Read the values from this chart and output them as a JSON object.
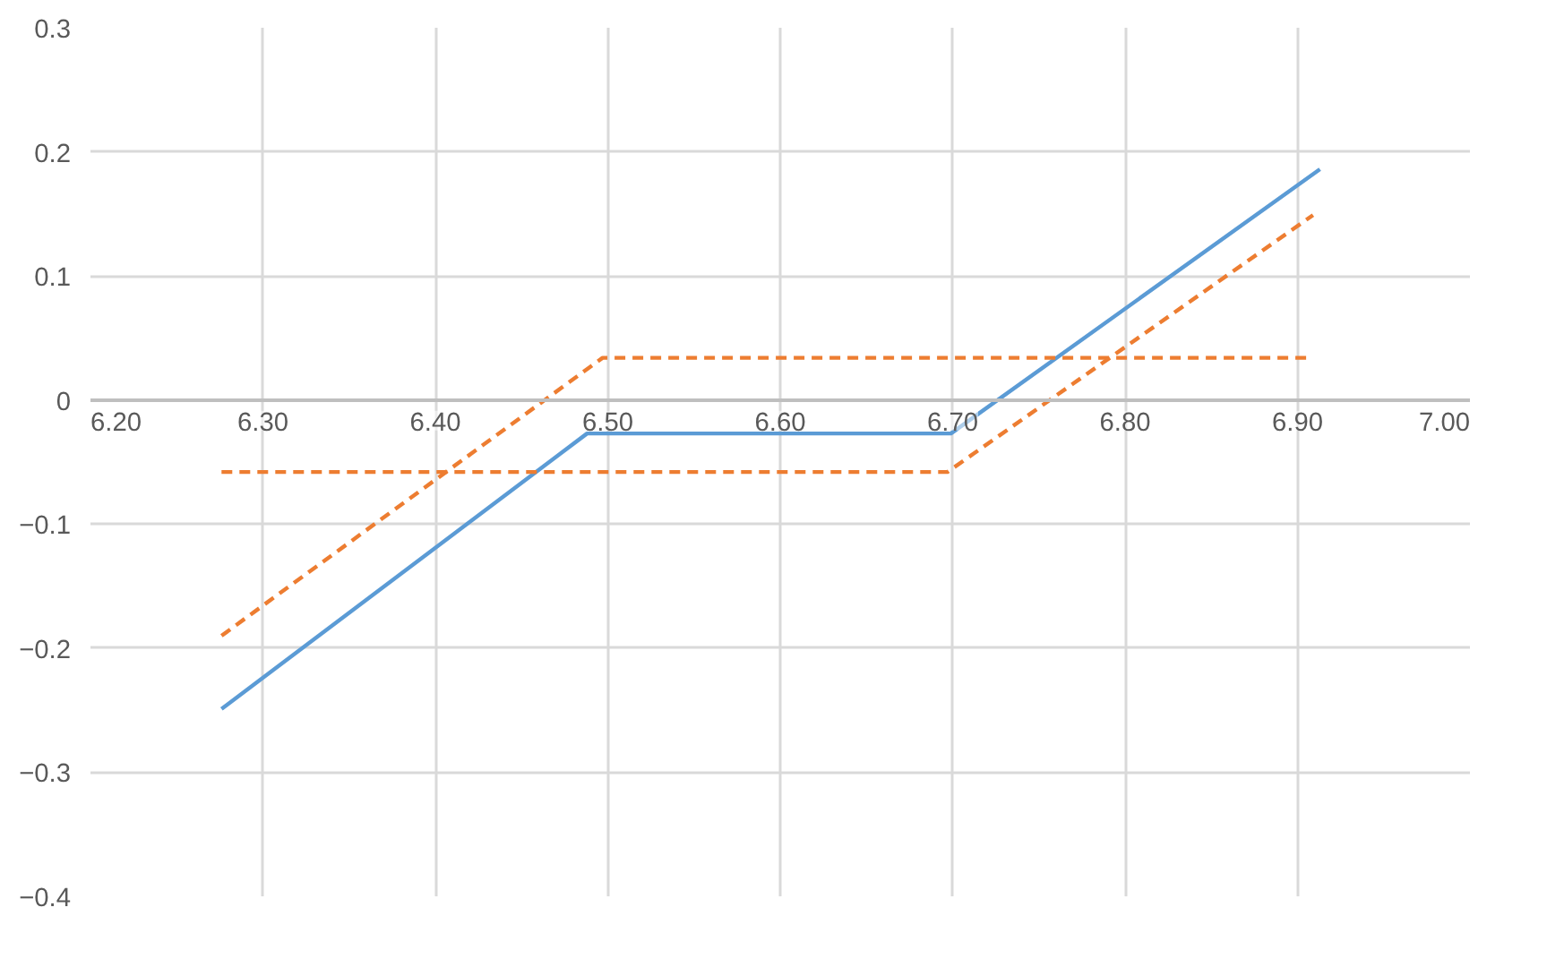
{
  "chart_data": {
    "type": "line",
    "xlim": [
      6.2,
      7.0
    ],
    "xticks": [
      {
        "value": 6.2,
        "label": "6.20"
      },
      {
        "value": 6.3,
        "label": "6.30"
      },
      {
        "value": 6.4,
        "label": "6.40"
      },
      {
        "value": 6.5,
        "label": "6.50"
      },
      {
        "value": 6.6,
        "label": "6.60"
      },
      {
        "value": 6.7,
        "label": "6.70"
      },
      {
        "value": 6.8,
        "label": "6.80"
      },
      {
        "value": 6.9,
        "label": "6.90"
      },
      {
        "value": 7.0,
        "label": "7.00"
      }
    ],
    "ylim": [
      -0.4,
      0.3
    ],
    "yticks": [
      -0.4,
      -0.3,
      -0.2,
      -0.1,
      0,
      0.1,
      0.2,
      0.3
    ],
    "grid": true,
    "series": [
      {
        "color": "#5b9bd5",
        "line_style": "solid",
        "x": [
          6.276,
          6.488,
          6.699,
          6.913
        ],
        "values": [
          -0.249,
          -0.027,
          -0.027,
          0.186
        ]
      },
      {
        "color": "#ed7d31",
        "line_style": "dashed",
        "x": [
          6.276,
          6.497,
          6.906
        ],
        "values": [
          -0.19,
          0.034,
          0.034
        ]
      },
      {
        "color": "#ed7d31",
        "line_style": "dashed",
        "x": [
          6.276,
          6.697,
          6.909
        ],
        "values": [
          -0.058,
          -0.058,
          0.149
        ]
      }
    ]
  }
}
